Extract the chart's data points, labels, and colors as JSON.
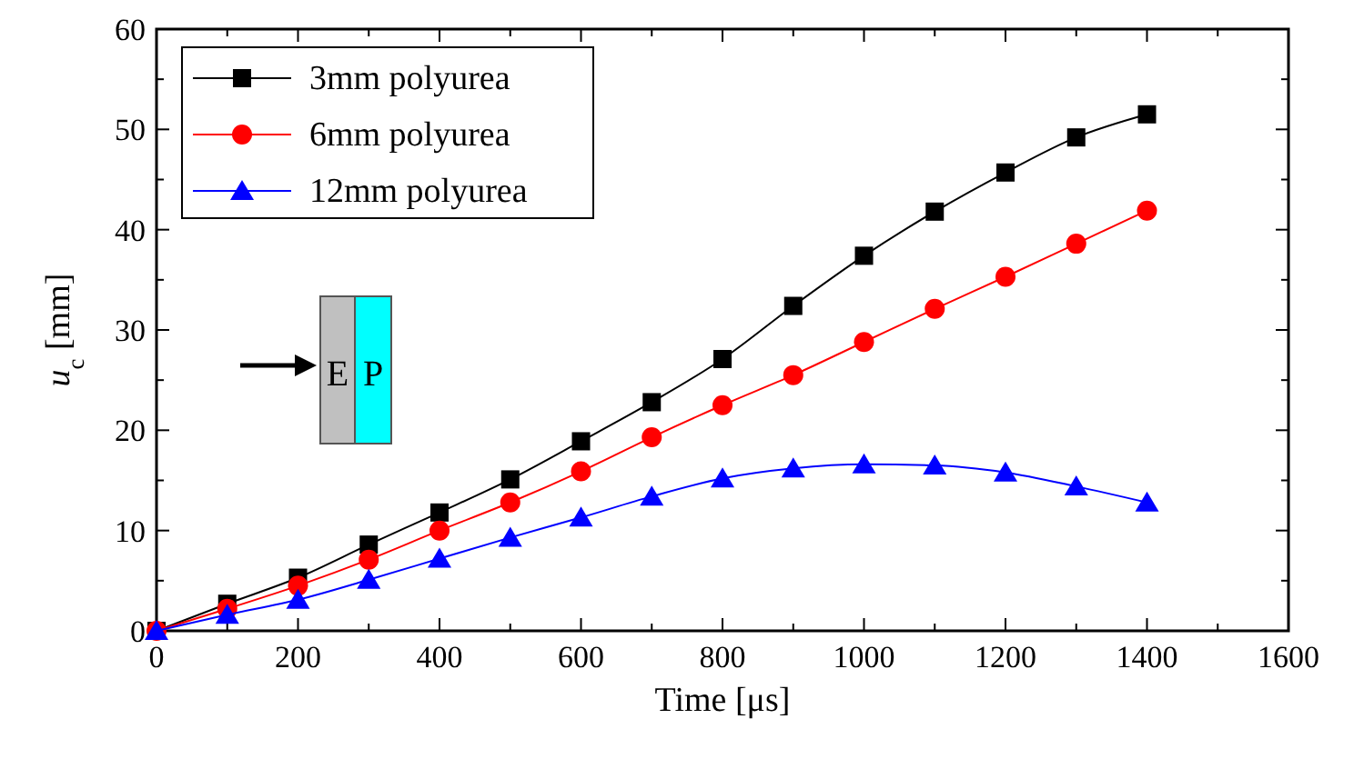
{
  "chart_data": {
    "type": "line",
    "xlabel": "Time [μs]",
    "ylabel": "u$_{c}$ [mm]",
    "x": [
      0,
      100,
      200,
      300,
      400,
      500,
      600,
      700,
      800,
      900,
      1000,
      1100,
      1200,
      1300,
      1400
    ],
    "series": [
      {
        "name": "3mm polyurea",
        "color": "#000000",
        "marker": "square",
        "values": [
          0,
          2.7,
          5.3,
          8.6,
          11.8,
          15.1,
          18.9,
          22.8,
          27.1,
          32.4,
          37.4,
          41.8,
          45.7,
          49.2,
          51.5
        ]
      },
      {
        "name": "6mm polyurea",
        "color": "#ff0000",
        "marker": "circle",
        "values": [
          0,
          2.2,
          4.5,
          7.1,
          10,
          12.8,
          15.9,
          19.3,
          22.5,
          25.5,
          28.8,
          32.1,
          35.3,
          38.6,
          41.9
        ]
      },
      {
        "name": "12mm polyurea",
        "color": "#0000ff",
        "marker": "triangle",
        "values": [
          0,
          1.6,
          3.1,
          5.1,
          7.2,
          9.3,
          11.3,
          13.4,
          15.2,
          16.2,
          16.6,
          16.5,
          15.8,
          14.4,
          12.8
        ]
      }
    ],
    "xlim": [
      0,
      1600
    ],
    "xticks": [
      0,
      {
        "value": 100,
        "label": null
      },
      200,
      {
        "value": 300,
        "label": null
      },
      400,
      {
        "value": 500,
        "label": null
      },
      600,
      {
        "value": 700,
        "label": null
      },
      800,
      {
        "value": 900,
        "label": null
      },
      1000,
      {
        "value": 1100,
        "label": null
      },
      1200,
      {
        "value": 1300,
        "label": null
      },
      1400,
      {
        "value": 1500,
        "label": null
      },
      1600
    ],
    "ylim": [
      0,
      60
    ],
    "yticks": [
      0,
      {
        "value": 5,
        "label": null
      },
      10,
      {
        "value": 15,
        "label": null
      },
      20,
      {
        "value": 25,
        "label": null
      },
      30,
      {
        "value": 35,
        "label": null
      },
      40,
      {
        "value": 45,
        "label": null
      },
      50,
      {
        "value": 55,
        "label": null
      },
      60
    ],
    "legend": "top left",
    "grid": false,
    "line_style": "solid",
    "annotations": [
      "E",
      "P"
    ]
  }
}
